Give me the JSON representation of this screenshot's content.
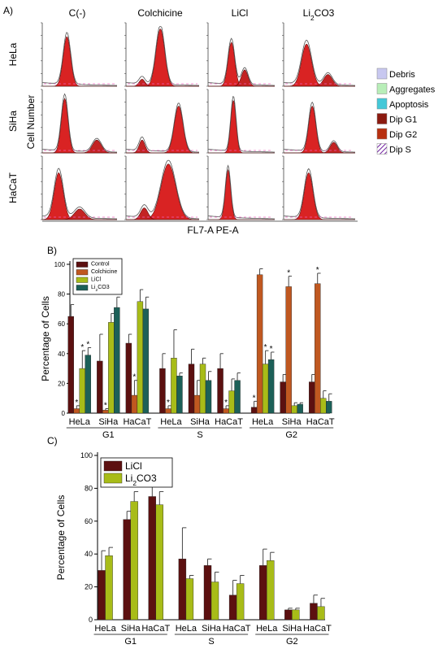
{
  "panel_a": {
    "label": "A)",
    "columns": [
      "C(-)",
      "Colchicine",
      "LiCl",
      "Li2CO3"
    ],
    "rows": [
      "HeLa",
      "SiHa",
      "HaCaT"
    ],
    "ylabel": "Cell Number",
    "xlabel": "FL7-A PE-A",
    "legend": [
      {
        "label": "Debris",
        "color": "#c8c8f0"
      },
      {
        "label": "Aggregates",
        "color": "#b8eeb8"
      },
      {
        "label": "Apoptosis",
        "color": "#44c8d8"
      },
      {
        "label": "Dip G1",
        "color": "#8b1a10"
      },
      {
        "label": "Dip G2",
        "color": "#b83010"
      },
      {
        "label": "Dip S",
        "color": "#7020a0"
      }
    ]
  },
  "chart_data": [
    {
      "panel": "B)",
      "type": "bar",
      "ylabel": "Percentage of Cells",
      "ylim": [
        0,
        100
      ],
      "yticks": [
        0,
        20,
        40,
        60,
        80,
        100
      ],
      "groups": [
        {
          "name": "G1",
          "cells": [
            "HeLa",
            "SiHa",
            "HaCaT"
          ]
        },
        {
          "name": "S",
          "cells": [
            "HeLa",
            "SiHa",
            "HaCaT"
          ]
        },
        {
          "name": "G2",
          "cells": [
            "HeLa",
            "SiHa",
            "HaCaT"
          ]
        }
      ],
      "series": [
        {
          "name": "Control",
          "color": "#5c1010",
          "values": [
            65,
            35,
            47,
            30,
            33,
            30,
            4,
            21,
            21
          ],
          "errors": [
            8,
            18,
            6,
            10,
            10,
            10,
            4,
            5,
            5
          ]
        },
        {
          "name": "Colchicine",
          "color": "#c05820",
          "values": [
            3,
            2,
            12,
            3,
            12,
            3,
            93,
            85,
            87
          ],
          "errors": [
            2,
            1,
            10,
            2,
            10,
            2,
            4,
            7,
            7
          ]
        },
        {
          "name": "LiCl",
          "color": "#a8bc18",
          "values": [
            30,
            61,
            75,
            37,
            33,
            15,
            33,
            5,
            10
          ],
          "errors": [
            12,
            6,
            8,
            19,
            4,
            8,
            9,
            2,
            5
          ]
        },
        {
          "name": "Li2CO3",
          "color": "#1c6058",
          "values": [
            39,
            71,
            70,
            25,
            22,
            22,
            36,
            6,
            8
          ],
          "errors": [
            5,
            7,
            8,
            2,
            6,
            5,
            5,
            1,
            5
          ]
        }
      ],
      "significance": [
        {
          "series": 1,
          "index": 0
        },
        {
          "series": 2,
          "index": 0
        },
        {
          "series": 3,
          "index": 0
        },
        {
          "series": 1,
          "index": 1
        },
        {
          "series": 1,
          "index": 2
        },
        {
          "series": 1,
          "index": 3
        },
        {
          "series": 1,
          "index": 5
        },
        {
          "series": 0,
          "index": 6
        },
        {
          "series": 2,
          "index": 6
        },
        {
          "series": 3,
          "index": 6
        },
        {
          "series": 1,
          "index": 7
        },
        {
          "series": 1,
          "index": 8
        }
      ]
    },
    {
      "panel": "C)",
      "type": "bar",
      "ylabel": "Percentage of Cells",
      "ylim": [
        0,
        100
      ],
      "yticks": [
        0,
        20,
        40,
        60,
        80,
        100
      ],
      "groups": [
        {
          "name": "G1",
          "cells": [
            "HeLa",
            "SiHa",
            "HaCaT"
          ]
        },
        {
          "name": "S",
          "cells": [
            "HeLa",
            "SiHa",
            "HaCaT"
          ]
        },
        {
          "name": "G2",
          "cells": [
            "HeLa",
            "SiHa",
            "HaCaT"
          ]
        }
      ],
      "series": [
        {
          "name": "LiCl",
          "color": "#5c1010",
          "values": [
            30,
            61,
            75,
            37,
            33,
            15,
            33,
            6,
            10
          ],
          "errors": [
            12,
            5,
            8,
            19,
            4,
            9,
            10,
            1,
            5
          ]
        },
        {
          "name": "Li2CO3",
          "color": "#a8bc18",
          "values": [
            39,
            72,
            70,
            25,
            23,
            22,
            36,
            6,
            8
          ],
          "errors": [
            5,
            6,
            8,
            2,
            6,
            5,
            5,
            1,
            5
          ]
        }
      ]
    }
  ]
}
